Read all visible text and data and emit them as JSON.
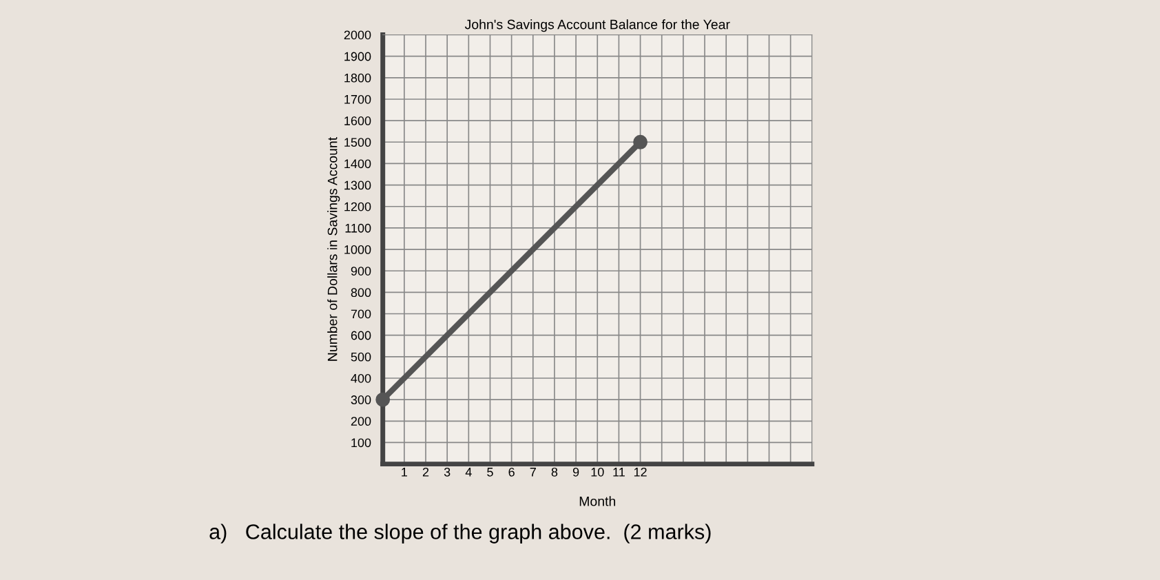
{
  "chart_data": {
    "type": "line",
    "title": "John's Savings Account Balance for the Year",
    "xlabel": "Month",
    "ylabel": "Number of Dollars in Savings Account",
    "x": [
      0,
      12
    ],
    "series": [
      {
        "color": "#555555",
        "values": [
          300,
          1500
        ]
      }
    ],
    "marker": "circle",
    "line_style": "solid",
    "grid": true,
    "legend": false,
    "xlim": [
      0,
      20
    ],
    "ylim": [
      0,
      2000
    ],
    "xticks": [
      1,
      2,
      3,
      4,
      5,
      6,
      7,
      8,
      9,
      10,
      11,
      12,
      {
        "value": 13,
        "label": null
      },
      {
        "value": 14,
        "label": null
      },
      {
        "value": 15,
        "label": null
      },
      {
        "value": 16,
        "label": null
      },
      {
        "value": 17,
        "label": null
      },
      {
        "value": 18,
        "label": null
      },
      {
        "value": 19,
        "label": null
      },
      {
        "value": 20,
        "label": null
      }
    ],
    "yticks": [
      100,
      200,
      300,
      400,
      500,
      600,
      700,
      800,
      900,
      1000,
      1100,
      1200,
      1300,
      1400,
      1500,
      1600,
      1700,
      1800,
      1900,
      2000
    ],
    "annotations": [
      "a)   Calculate the slope of the graph above.  (2 marks)"
    ]
  }
}
